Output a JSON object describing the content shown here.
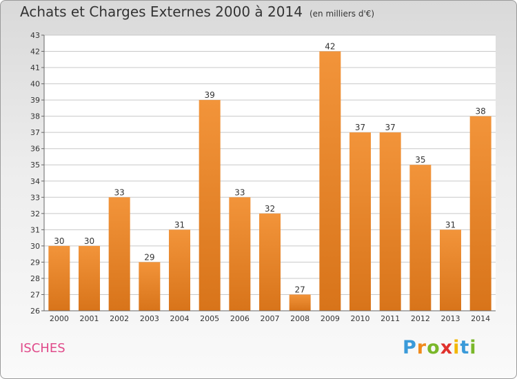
{
  "title": "Achats et Charges Externes 2000 à 2014",
  "unit": "(en milliers d'€)",
  "town": "ISCHES",
  "logo": {
    "letters": [
      "P",
      "r",
      "o",
      "x",
      "i",
      "t",
      "i"
    ],
    "colors": [
      "#3a9ad9",
      "#f08a1c",
      "#7ab72a",
      "#e0312c",
      "#f2b705",
      "#3a9ad9",
      "#7ab72a"
    ]
  },
  "colors": {
    "bar": "#f2943a",
    "bar_dark": "#d8741a",
    "grid": "#c8c8c8",
    "axis_text": "#333333"
  },
  "chart_data": {
    "type": "bar",
    "title": "Achats et Charges Externes 2000 à 2014",
    "categories": [
      "2000",
      "2001",
      "2002",
      "2003",
      "2004",
      "2005",
      "2006",
      "2007",
      "2008",
      "2009",
      "2010",
      "2011",
      "2012",
      "2013",
      "2014"
    ],
    "values": [
      30,
      30,
      33,
      29,
      31,
      39,
      33,
      32,
      27,
      42,
      37,
      37,
      35,
      31,
      38
    ],
    "ylim": [
      26,
      43
    ],
    "yticks": [
      26,
      27,
      28,
      29,
      30,
      31,
      32,
      33,
      34,
      35,
      36,
      37,
      38,
      39,
      40,
      41,
      42,
      43
    ],
    "grid": true
  }
}
